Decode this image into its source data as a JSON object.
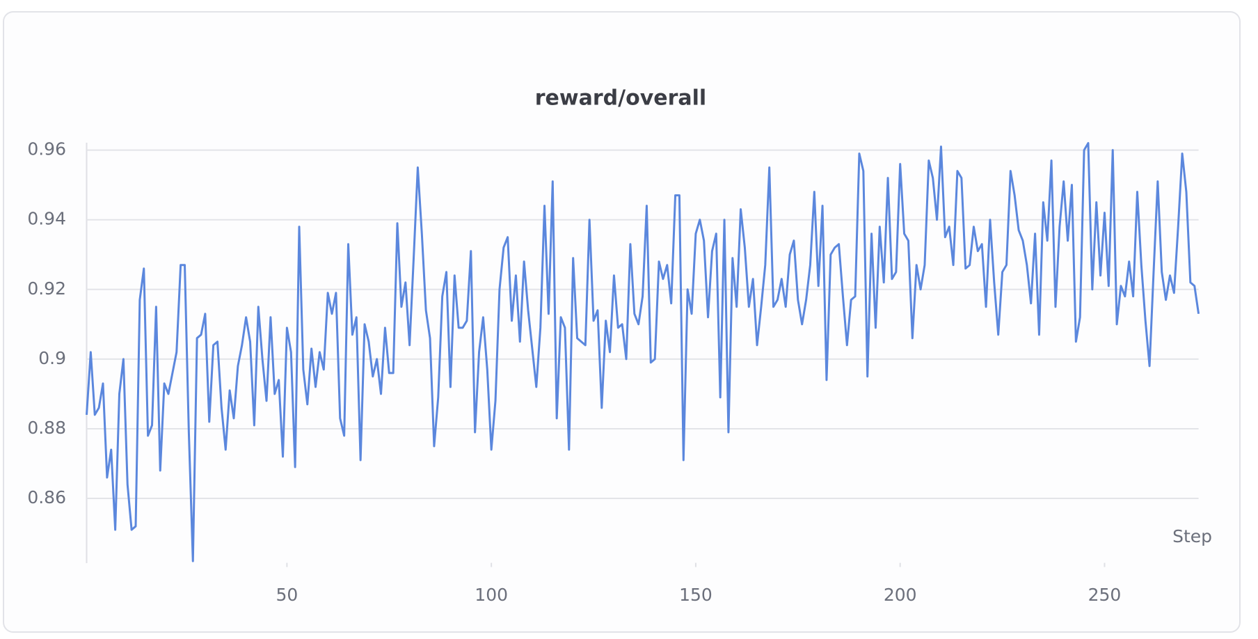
{
  "chart_data": {
    "type": "line",
    "title": "reward/overall",
    "x_label": "Step",
    "x": [
      1,
      2,
      3,
      4,
      5,
      6,
      7,
      8,
      9,
      10,
      11,
      12,
      13,
      14,
      15,
      16,
      17,
      18,
      19,
      20,
      21,
      22,
      23,
      24,
      25,
      26,
      27,
      28,
      29,
      30,
      31,
      32,
      33,
      34,
      35,
      36,
      37,
      38,
      39,
      40,
      41,
      42,
      43,
      44,
      45,
      46,
      47,
      48,
      49,
      50,
      51,
      52,
      53,
      54,
      55,
      56,
      57,
      58,
      59,
      60,
      61,
      62,
      63,
      64,
      65,
      66,
      67,
      68,
      69,
      70,
      71,
      72,
      73,
      74,
      75,
      76,
      77,
      78,
      79,
      80,
      81,
      82,
      83,
      84,
      85,
      86,
      87,
      88,
      89,
      90,
      91,
      92,
      93,
      94,
      95,
      96,
      97,
      98,
      99,
      100,
      101,
      102,
      103,
      104,
      105,
      106,
      107,
      108,
      109,
      110,
      111,
      112,
      113,
      114,
      115,
      116,
      117,
      118,
      119,
      120,
      121,
      122,
      123,
      124,
      125,
      126,
      127,
      128,
      129,
      130,
      131,
      132,
      133,
      134,
      135,
      136,
      137,
      138,
      139,
      140,
      141,
      142,
      143,
      144,
      145,
      146,
      147,
      148,
      149,
      150,
      151,
      152,
      153,
      154,
      155,
      156,
      157,
      158,
      159,
      160,
      161,
      162,
      163,
      164,
      165,
      166,
      167,
      168,
      169,
      170,
      171,
      172,
      173,
      174,
      175,
      176,
      177,
      178,
      179,
      180,
      181,
      182,
      183,
      184,
      185,
      186,
      187,
      188,
      189,
      190,
      191,
      192,
      193,
      194,
      195,
      196,
      197,
      198,
      199,
      200,
      201,
      202,
      203,
      204,
      205,
      206,
      207,
      208,
      209,
      210,
      211,
      212,
      213,
      214,
      215,
      216,
      217,
      218,
      219,
      220,
      221,
      222,
      223,
      224,
      225,
      226,
      227,
      228,
      229,
      230,
      231,
      232,
      233,
      234,
      235,
      236,
      237,
      238,
      239,
      240,
      241,
      242,
      243,
      244,
      245,
      246,
      247,
      248,
      249,
      250,
      251,
      252,
      253,
      254,
      255,
      256,
      257,
      258,
      259,
      260,
      261,
      262,
      263,
      264,
      265,
      266,
      267,
      268,
      269,
      270,
      271,
      272,
      273
    ],
    "series": [
      {
        "color": "#5b87dd",
        "values": [
          0.884,
          0.902,
          0.884,
          0.886,
          0.893,
          0.866,
          0.874,
          0.851,
          0.89,
          0.9,
          0.864,
          0.851,
          0.852,
          0.917,
          0.926,
          0.878,
          0.881,
          0.915,
          0.868,
          0.893,
          0.89,
          0.896,
          0.902,
          0.927,
          0.927,
          0.879,
          0.842,
          0.906,
          0.907,
          0.913,
          0.882,
          0.904,
          0.905,
          0.886,
          0.874,
          0.891,
          0.883,
          0.898,
          0.904,
          0.912,
          0.905,
          0.881,
          0.915,
          0.9,
          0.888,
          0.912,
          0.89,
          0.894,
          0.872,
          0.909,
          0.902,
          0.869,
          0.938,
          0.897,
          0.887,
          0.903,
          0.892,
          0.902,
          0.897,
          0.919,
          0.913,
          0.919,
          0.883,
          0.878,
          0.933,
          0.907,
          0.912,
          0.871,
          0.91,
          0.905,
          0.895,
          0.9,
          0.89,
          0.909,
          0.896,
          0.896,
          0.939,
          0.915,
          0.922,
          0.904,
          0.929,
          0.955,
          0.936,
          0.914,
          0.906,
          0.875,
          0.889,
          0.918,
          0.925,
          0.892,
          0.924,
          0.909,
          0.909,
          0.911,
          0.931,
          0.879,
          0.902,
          0.912,
          0.897,
          0.874,
          0.888,
          0.92,
          0.932,
          0.935,
          0.911,
          0.924,
          0.905,
          0.928,
          0.914,
          0.903,
          0.892,
          0.909,
          0.944,
          0.913,
          0.951,
          0.883,
          0.912,
          0.909,
          0.874,
          0.929,
          0.906,
          0.905,
          0.904,
          0.94,
          0.911,
          0.914,
          0.886,
          0.911,
          0.902,
          0.924,
          0.909,
          0.91,
          0.9,
          0.933,
          0.913,
          0.91,
          0.918,
          0.944,
          0.899,
          0.9,
          0.928,
          0.923,
          0.927,
          0.916,
          0.947,
          0.947,
          0.871,
          0.92,
          0.913,
          0.936,
          0.94,
          0.934,
          0.912,
          0.931,
          0.936,
          0.889,
          0.94,
          0.879,
          0.929,
          0.915,
          0.943,
          0.932,
          0.915,
          0.923,
          0.904,
          0.915,
          0.927,
          0.955,
          0.915,
          0.917,
          0.923,
          0.915,
          0.93,
          0.934,
          0.917,
          0.91,
          0.917,
          0.927,
          0.948,
          0.921,
          0.944,
          0.894,
          0.93,
          0.932,
          0.933,
          0.918,
          0.904,
          0.917,
          0.918,
          0.959,
          0.954,
          0.895,
          0.936,
          0.909,
          0.938,
          0.922,
          0.952,
          0.923,
          0.925,
          0.956,
          0.936,
          0.934,
          0.906,
          0.927,
          0.92,
          0.927,
          0.957,
          0.952,
          0.94,
          0.961,
          0.935,
          0.938,
          0.927,
          0.954,
          0.952,
          0.926,
          0.927,
          0.938,
          0.931,
          0.933,
          0.915,
          0.94,
          0.922,
          0.907,
          0.925,
          0.927,
          0.954,
          0.947,
          0.937,
          0.934,
          0.927,
          0.916,
          0.936,
          0.907,
          0.945,
          0.934,
          0.957,
          0.915,
          0.938,
          0.951,
          0.934,
          0.95,
          0.905,
          0.912,
          0.96,
          0.962,
          0.92,
          0.945,
          0.924,
          0.942,
          0.921,
          0.96,
          0.91,
          0.921,
          0.918,
          0.928,
          0.918,
          0.948,
          0.927,
          0.911,
          0.898,
          0.925,
          0.951,
          0.925,
          0.917,
          0.924,
          0.919,
          0.938,
          0.959,
          0.948,
          0.922,
          0.921,
          0.913
        ]
      }
    ],
    "xlim": [
      1,
      273
    ],
    "ylim": [
      0.8415,
      0.962
    ],
    "xticks": [
      50,
      100,
      150,
      200,
      250
    ],
    "yticks": [
      0.86,
      0.88,
      0.9,
      0.92,
      0.94,
      0.96
    ],
    "grid": true
  }
}
